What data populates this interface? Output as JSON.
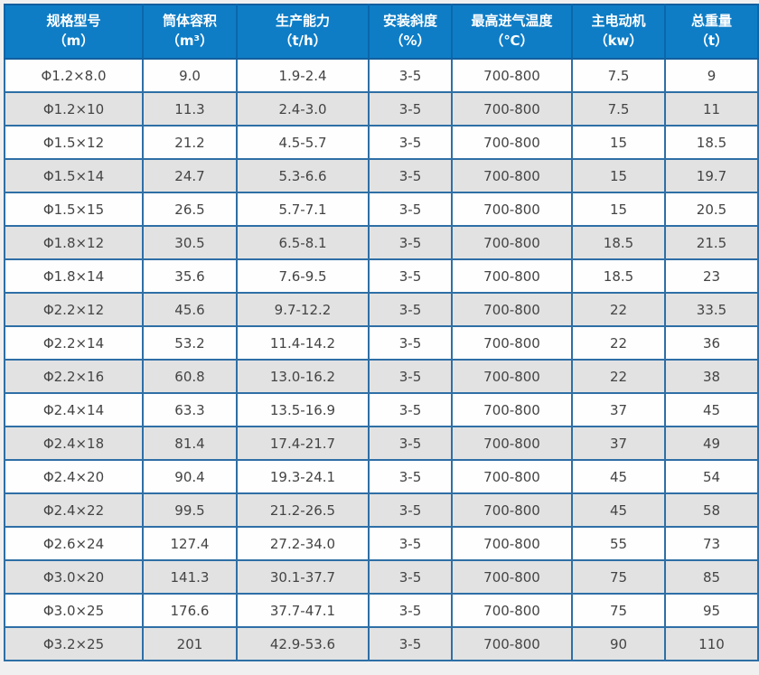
{
  "table": {
    "columns": [
      {
        "title": "规格型号",
        "unit": "（m）"
      },
      {
        "title": "筒体容积",
        "unit": "（m³）"
      },
      {
        "title": "生产能力",
        "unit": "（t/h）"
      },
      {
        "title": "安装斜度",
        "unit": "（%）"
      },
      {
        "title": "最高进气温度",
        "unit": "（℃）"
      },
      {
        "title": "主电动机",
        "unit": "（kw）"
      },
      {
        "title": "总重量",
        "unit": "（t）"
      }
    ],
    "rows": [
      [
        "Φ1.2×8.0",
        "9.0",
        "1.9-2.4",
        "3-5",
        "700-800",
        "7.5",
        "9"
      ],
      [
        "Φ1.2×10",
        "11.3",
        "2.4-3.0",
        "3-5",
        "700-800",
        "7.5",
        "11"
      ],
      [
        "Φ1.5×12",
        "21.2",
        "4.5-5.7",
        "3-5",
        "700-800",
        "15",
        "18.5"
      ],
      [
        "Φ1.5×14",
        "24.7",
        "5.3-6.6",
        "3-5",
        "700-800",
        "15",
        "19.7"
      ],
      [
        "Φ1.5×15",
        "26.5",
        "5.7-7.1",
        "3-5",
        "700-800",
        "15",
        "20.5"
      ],
      [
        "Φ1.8×12",
        "30.5",
        "6.5-8.1",
        "3-5",
        "700-800",
        "18.5",
        "21.5"
      ],
      [
        "Φ1.8×14",
        "35.6",
        "7.6-9.5",
        "3-5",
        "700-800",
        "18.5",
        "23"
      ],
      [
        "Φ2.2×12",
        "45.6",
        "9.7-12.2",
        "3-5",
        "700-800",
        "22",
        "33.5"
      ],
      [
        "Φ2.2×14",
        "53.2",
        "11.4-14.2",
        "3-5",
        "700-800",
        "22",
        "36"
      ],
      [
        "Φ2.2×16",
        "60.8",
        "13.0-16.2",
        "3-5",
        "700-800",
        "22",
        "38"
      ],
      [
        "Φ2.4×14",
        "63.3",
        "13.5-16.9",
        "3-5",
        "700-800",
        "37",
        "45"
      ],
      [
        "Φ2.4×18",
        "81.4",
        "17.4-21.7",
        "3-5",
        "700-800",
        "37",
        "49"
      ],
      [
        "Φ2.4×20",
        "90.4",
        "19.3-24.1",
        "3-5",
        "700-800",
        "45",
        "54"
      ],
      [
        "Φ2.4×22",
        "99.5",
        "21.2-26.5",
        "3-5",
        "700-800",
        "45",
        "58"
      ],
      [
        "Φ2.6×24",
        "127.4",
        "27.2-34.0",
        "3-5",
        "700-800",
        "55",
        "73"
      ],
      [
        "Φ3.0×20",
        "141.3",
        "30.1-37.7",
        "3-5",
        "700-800",
        "75",
        "85"
      ],
      [
        "Φ3.0×25",
        "176.6",
        "37.7-47.1",
        "3-5",
        "700-800",
        "75",
        "95"
      ],
      [
        "Φ3.2×25",
        "201",
        "42.9-53.6",
        "3-5",
        "700-800",
        "90",
        "110"
      ]
    ]
  },
  "colors": {
    "header_bg": "#0e7dc6",
    "header_text": "#ffffff",
    "header_divider": "#0a67ab",
    "outer_border": "#135f9e",
    "grid_line": "#2e6fa6",
    "row_bg": "#fefefe",
    "row_alt_bg": "#e2e2e2",
    "cell_text": "#444444",
    "page_bg": "#f0f0f0"
  }
}
